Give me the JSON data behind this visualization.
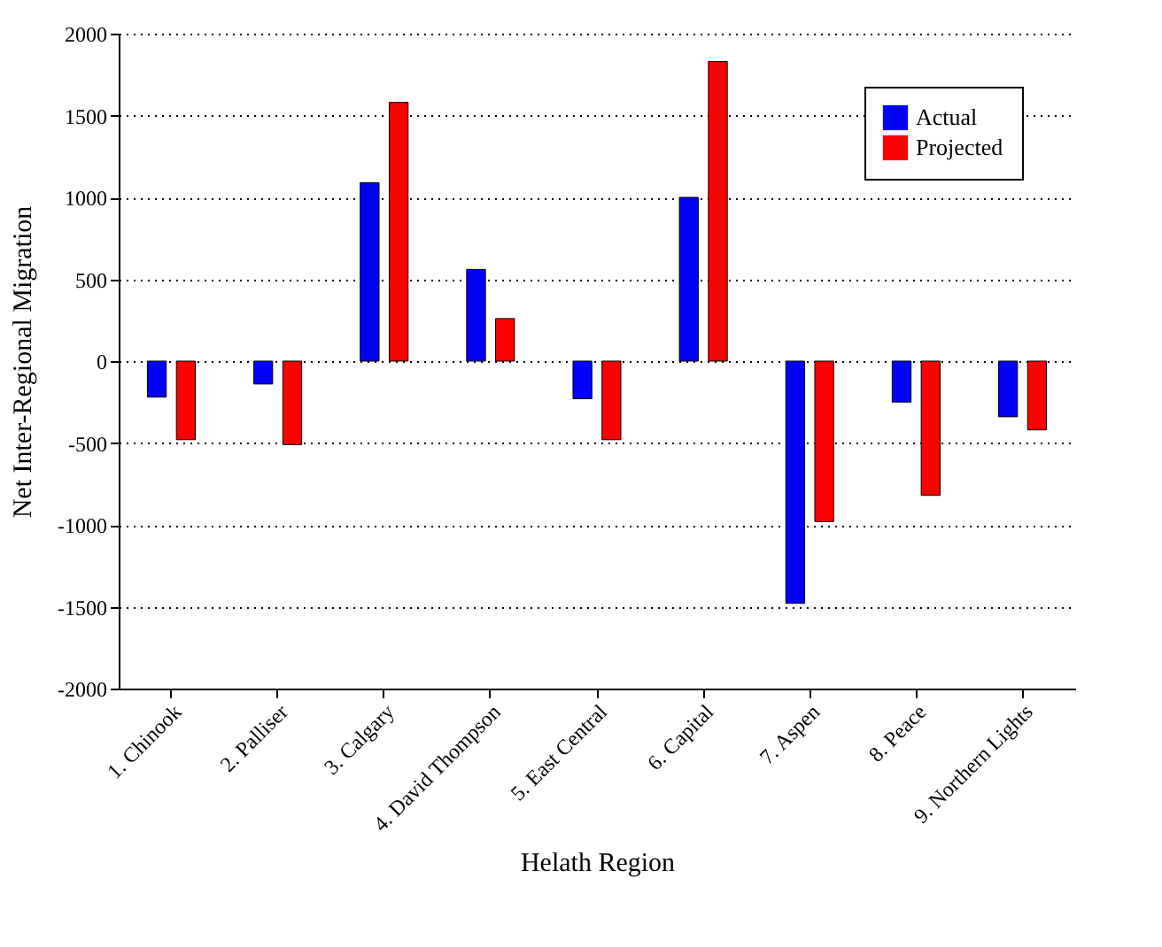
{
  "chart_data": {
    "type": "bar",
    "xlabel": "Helath Region",
    "ylabel": "Net Inter-Regional Migration",
    "categories": [
      "1. Chinook",
      "2. Palliser",
      "3. Calgary",
      "4. David Thompson",
      "5. East Central",
      "6. Capital",
      "7. Aspen",
      "8. Peace",
      "9. Northern Lights"
    ],
    "series": [
      {
        "name": "Actual",
        "color": "#0000ff",
        "values": [
          -220,
          -140,
          1090,
          560,
          -230,
          1000,
          -1480,
          -250,
          -340
        ]
      },
      {
        "name": "Projected",
        "color": "#ff0000",
        "values": [
          -480,
          -510,
          1580,
          260,
          -480,
          1830,
          -980,
          -820,
          -420
        ]
      }
    ],
    "ylim": [
      -2000,
      2000
    ],
    "yticks": [
      -2000,
      -1500,
      -1000,
      -500,
      0,
      500,
      1000,
      1500,
      2000
    ],
    "grid": "y",
    "legend": "top right"
  }
}
